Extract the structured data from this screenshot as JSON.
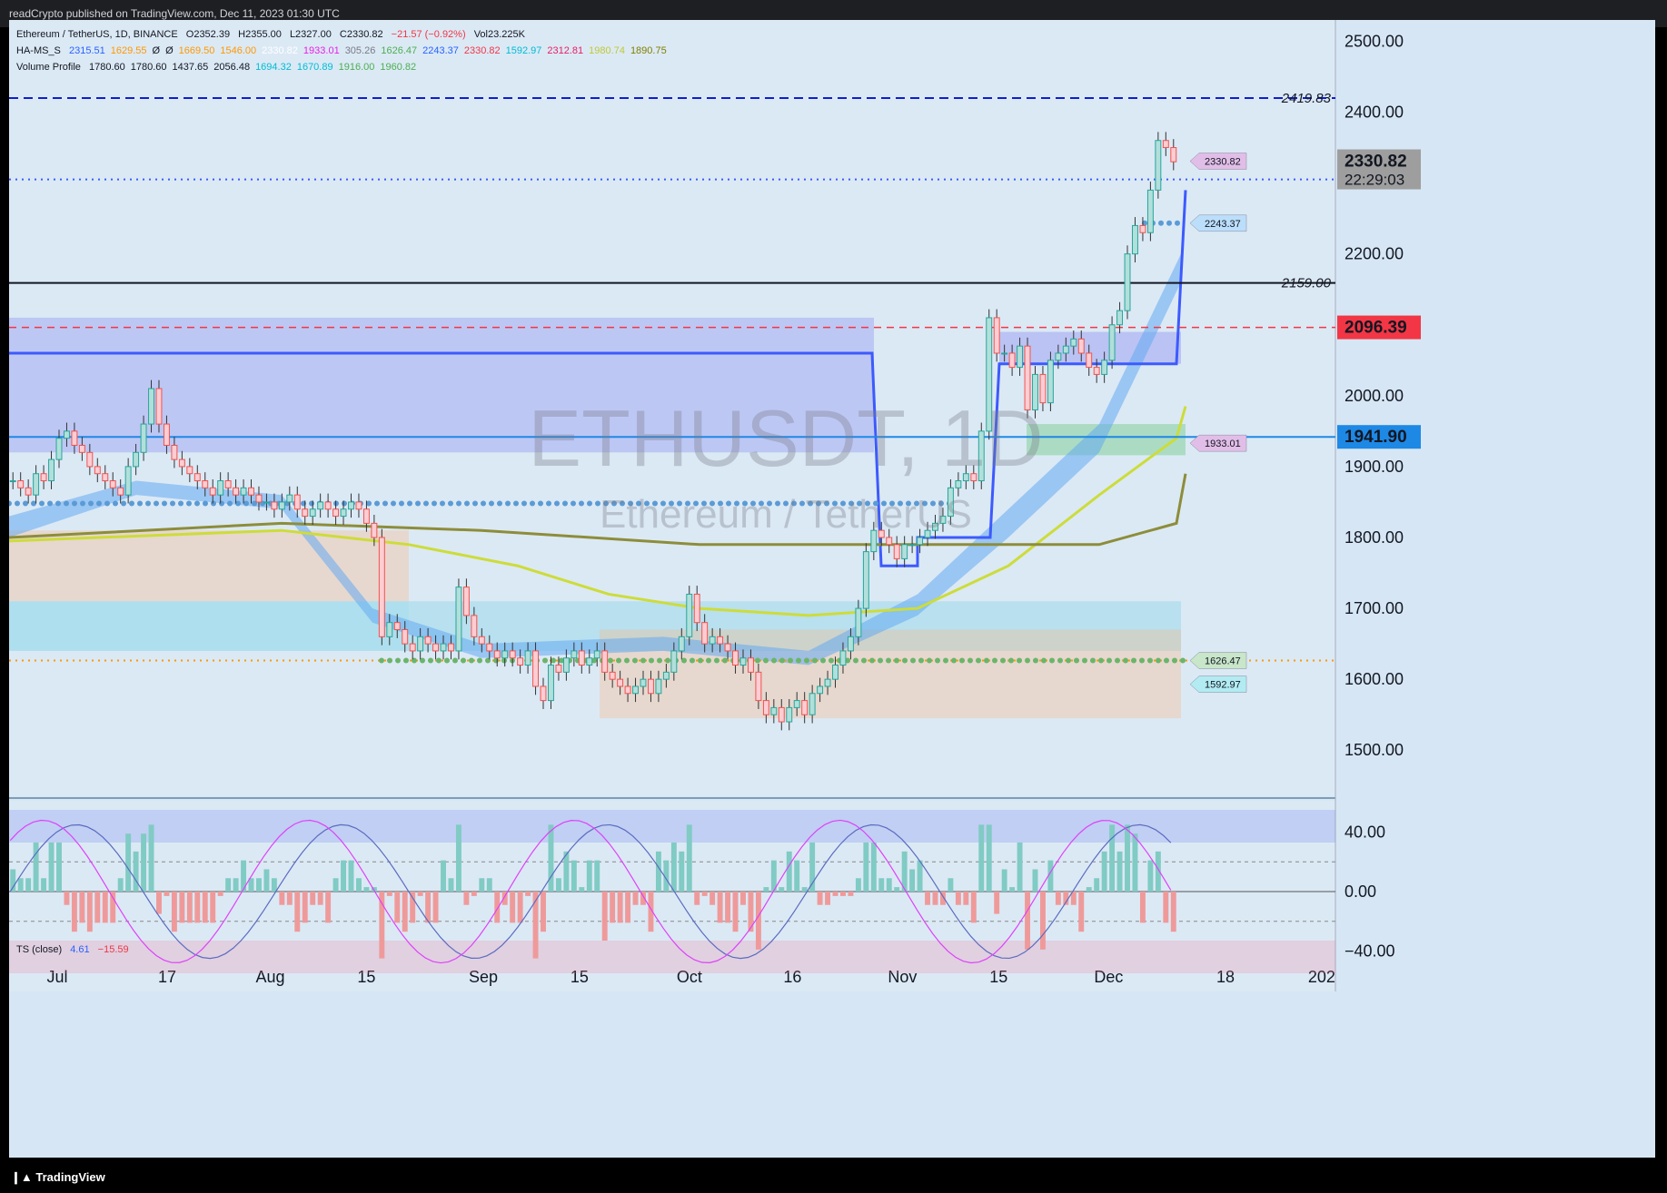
{
  "header": {
    "published": "readCrypto published on TradingView.com, Dec 11, 2023 01:30 UTC"
  },
  "footer": {
    "brand": "TradingView",
    "icon": "tradingview-logo-icon"
  },
  "legend": {
    "symbol_line": {
      "title": "Ethereum / TetherUS, 1D, BINANCE",
      "o": "O2352.39",
      "h": "H2355.00",
      "l": "L2327.00",
      "c": "C2330.82",
      "chg": "−21.57 (−0.92%)",
      "vol": "Vol23.225K"
    },
    "hams_line": {
      "name": "HA-MS_S",
      "values": [
        {
          "v": "2315.51",
          "color": "#2962ff"
        },
        {
          "v": "1629.55",
          "color": "#ff9800"
        },
        {
          "v": "Ø",
          "color": "#131722"
        },
        {
          "v": "Ø",
          "color": "#131722"
        },
        {
          "v": "1669.50",
          "color": "#ff9800"
        },
        {
          "v": "1546.00",
          "color": "#ff9800"
        },
        {
          "v": "2330.82",
          "color": "#ffffff"
        },
        {
          "v": "1933.01",
          "color": "#e91ee6"
        },
        {
          "v": "305.26",
          "color": "#787b86"
        },
        {
          "v": "1626.47",
          "color": "#4caf50"
        },
        {
          "v": "2243.37",
          "color": "#2962ff"
        },
        {
          "v": "2330.82",
          "color": "#f23645"
        },
        {
          "v": "1592.97",
          "color": "#00bcd4"
        },
        {
          "v": "2312.81",
          "color": "#e91e63"
        },
        {
          "v": "1980.74",
          "color": "#c0ca33"
        },
        {
          "v": "1890.75",
          "color": "#808000"
        }
      ]
    },
    "vp_line": {
      "name": "Volume Profile",
      "values": [
        {
          "v": "1780.60",
          "color": "#131722"
        },
        {
          "v": "1780.60",
          "color": "#131722"
        },
        {
          "v": "1437.65",
          "color": "#131722"
        },
        {
          "v": "2056.48",
          "color": "#131722"
        },
        {
          "v": "1694.32",
          "color": "#00bcd4"
        },
        {
          "v": "1670.89",
          "color": "#00bcd4"
        },
        {
          "v": "1916.00",
          "color": "#4caf50"
        },
        {
          "v": "1960.82",
          "color": "#4caf50"
        }
      ]
    },
    "ts_line": {
      "name": "TS (close)",
      "v1": "4.61",
      "v2": "−15.59"
    }
  },
  "watermark": {
    "symbol": "ETHUSDT, 1D",
    "name": "Ethereum / TetherUS"
  },
  "chart_data": {
    "type": "candlestick",
    "price_axis": {
      "ticks": [
        1500,
        1600,
        1700,
        1800,
        1900,
        2000,
        2100,
        2200,
        2300,
        2400,
        2500
      ],
      "labels": [
        "1500.00",
        "1600.00",
        "1700.00",
        "1800.00",
        "1900.00",
        "2000.00",
        "2200.00",
        "2400.00",
        "2500.00"
      ],
      "label_values": [
        1500,
        1600,
        1700,
        1800,
        1900,
        2000,
        2200,
        2400,
        2500
      ],
      "range": [
        1435,
        2530
      ]
    },
    "time_axis": {
      "labels": [
        "Jul",
        "17",
        "Aug",
        "15",
        "Sep",
        "15",
        "Oct",
        "16",
        "Nov",
        "15",
        "Dec",
        "18",
        "202"
      ],
      "positions_date": [
        "2023-07-01",
        "2023-07-17",
        "2023-08-01",
        "2023-08-15",
        "2023-09-01",
        "2023-09-15",
        "2023-10-01",
        "2023-10-16",
        "2023-11-01",
        "2023-11-15",
        "2023-12-01",
        "2023-12-18",
        "2024-01-01"
      ]
    },
    "price_badges": [
      {
        "value": "2330.82",
        "text2": "22:29:03",
        "color": "#9e9e9e",
        "kind": "last"
      },
      {
        "value": "2096.39",
        "color": "#f23645",
        "kind": "level"
      },
      {
        "value": "1941.90",
        "color": "#1e88e5",
        "kind": "level"
      }
    ],
    "level_labels": [
      {
        "value": 2419.83,
        "text": "2419.83",
        "color": "#0d1fcf",
        "style": "dashed"
      },
      {
        "value": 2159.0,
        "text": "2159.00",
        "color": "#131722",
        "style": "solid"
      }
    ],
    "small_tags": [
      {
        "value": 2330.82,
        "text": "2330.82",
        "color": "#e1bee7"
      },
      {
        "value": 2243.37,
        "text": "2243.37",
        "color": "#bbdefb"
      },
      {
        "value": 1933.01,
        "text": "1933.01",
        "color": "#e1bee7"
      },
      {
        "value": 1626.47,
        "text": "1626.47",
        "color": "#c8e6c9"
      },
      {
        "value": 1592.97,
        "text": "1592.97",
        "color": "#b2ebf2"
      }
    ],
    "candles_close": [
      1880,
      1870,
      1860,
      1890,
      1880,
      1910,
      1940,
      1950,
      1930,
      1920,
      1900,
      1890,
      1880,
      1870,
      1860,
      1900,
      1920,
      1960,
      2010,
      1960,
      1930,
      1910,
      1900,
      1890,
      1880,
      1870,
      1860,
      1880,
      1870,
      1860,
      1870,
      1860,
      1850,
      1850,
      1840,
      1850,
      1860,
      1840,
      1830,
      1840,
      1850,
      1840,
      1830,
      1840,
      1850,
      1840,
      1820,
      1800,
      1660,
      1680,
      1670,
      1650,
      1640,
      1660,
      1650,
      1640,
      1650,
      1640,
      1730,
      1690,
      1660,
      1650,
      1640,
      1630,
      1640,
      1630,
      1620,
      1640,
      1590,
      1570,
      1620,
      1610,
      1630,
      1640,
      1620,
      1630,
      1640,
      1610,
      1600,
      1590,
      1580,
      1590,
      1600,
      1580,
      1600,
      1610,
      1640,
      1660,
      1720,
      1680,
      1650,
      1660,
      1650,
      1640,
      1620,
      1630,
      1610,
      1570,
      1550,
      1560,
      1540,
      1560,
      1570,
      1550,
      1580,
      1590,
      1600,
      1620,
      1640,
      1660,
      1700,
      1780,
      1810,
      1800,
      1790,
      1770,
      1790,
      1790,
      1800,
      1810,
      1820,
      1830,
      1870,
      1880,
      1890,
      1880,
      1950,
      2110,
      2060,
      2060,
      2040,
      2070,
      1980,
      2030,
      1990,
      2050,
      2060,
      2070,
      2080,
      2060,
      2040,
      2030,
      2050,
      2100,
      2120,
      2200,
      2240,
      2230,
      2290,
      2360,
      2350,
      2330
    ],
    "ts_oscillator": {
      "range": [
        -55,
        55
      ],
      "ticks": [
        40,
        0,
        -40
      ],
      "labels": [
        "40.00",
        "0.00",
        "−40.00"
      ]
    }
  }
}
